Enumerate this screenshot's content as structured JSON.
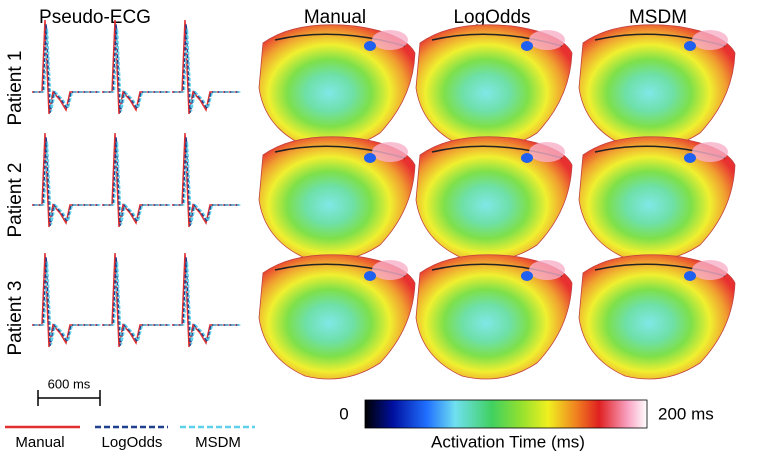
{
  "header": {
    "columns": [
      "Pseudo-ECG",
      "Manual",
      "LogOdds",
      "MSDM"
    ]
  },
  "rows": [
    "Patient 1",
    "Patient 2",
    "Patient 3"
  ],
  "scale_bar": "600 ms",
  "legend": [
    {
      "label": "Manual",
      "color": "#e03030"
    },
    {
      "label": "LogOdds",
      "color": "#1f3f8f"
    },
    {
      "label": "MSDM",
      "color": "#5fd0ea"
    }
  ],
  "colorbar": {
    "min_label": "0",
    "max_label": "200 ms",
    "title": "Activation Time (ms)"
  }
}
